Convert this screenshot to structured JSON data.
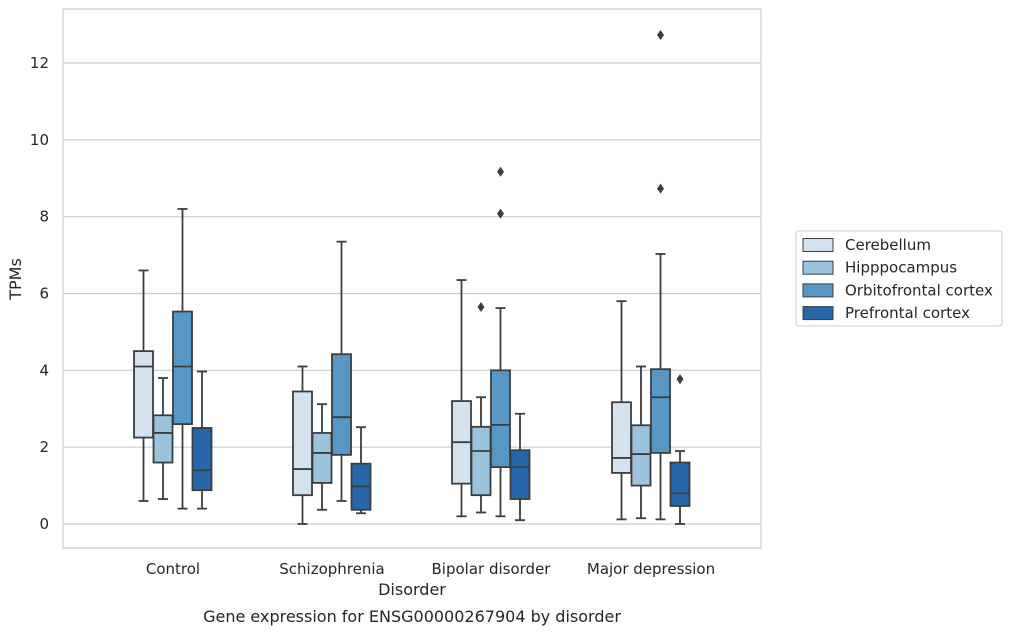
{
  "chart_data": {
    "type": "box",
    "xlabel": "Disorder",
    "ylabel": "TPMs",
    "caption": "Gene expression for ENSG00000267904 by disorder",
    "ylim": [
      -0.6,
      13.4
    ],
    "yticks": [
      0,
      2,
      4,
      6,
      8,
      10,
      12
    ],
    "grid": "horizontal",
    "legend_position": "right",
    "categories": [
      "Control",
      "Schizophrenia",
      "Bipolar disorder",
      "Major depression"
    ],
    "series": [
      {
        "name": "Cerebellum",
        "color": "#d4e2f0",
        "boxes": [
          {
            "whislo": 0.6,
            "q1": 2.25,
            "med": 4.1,
            "q3": 4.5,
            "whishi": 6.6,
            "fliers": []
          },
          {
            "whislo": 0.0,
            "q1": 0.75,
            "med": 1.43,
            "q3": 3.45,
            "whishi": 4.1,
            "fliers": []
          },
          {
            "whislo": 0.2,
            "q1": 1.05,
            "med": 2.13,
            "q3": 3.2,
            "whishi": 6.35,
            "fliers": []
          },
          {
            "whislo": 0.12,
            "q1": 1.33,
            "med": 1.72,
            "q3": 3.17,
            "whishi": 5.8,
            "fliers": []
          }
        ]
      },
      {
        "name": "Hipppocampus",
        "color": "#9cc3de",
        "boxes": [
          {
            "whislo": 0.65,
            "q1": 1.6,
            "med": 2.37,
            "q3": 2.83,
            "whishi": 3.8,
            "fliers": []
          },
          {
            "whislo": 0.37,
            "q1": 1.07,
            "med": 1.85,
            "q3": 2.37,
            "whishi": 3.12,
            "fliers": []
          },
          {
            "whislo": 0.3,
            "q1": 0.75,
            "med": 1.9,
            "q3": 2.53,
            "whishi": 3.3,
            "fliers": [
              5.65
            ]
          },
          {
            "whislo": 0.15,
            "q1": 1.0,
            "med": 1.82,
            "q3": 2.57,
            "whishi": 4.1,
            "fliers": []
          }
        ]
      },
      {
        "name": "Orbitofrontal cortex",
        "color": "#5896c5",
        "boxes": [
          {
            "whislo": 0.4,
            "q1": 2.6,
            "med": 4.1,
            "q3": 5.53,
            "whishi": 8.2,
            "fliers": []
          },
          {
            "whislo": 0.6,
            "q1": 1.8,
            "med": 2.78,
            "q3": 4.42,
            "whishi": 7.35,
            "fliers": []
          },
          {
            "whislo": 0.2,
            "q1": 1.48,
            "med": 2.58,
            "q3": 4.0,
            "whishi": 5.62,
            "fliers": [
              8.08,
              9.17
            ]
          },
          {
            "whislo": 0.12,
            "q1": 1.85,
            "med": 3.3,
            "q3": 4.03,
            "whishi": 7.03,
            "fliers": [
              8.73,
              12.73
            ]
          }
        ]
      },
      {
        "name": "Prefrontal cortex",
        "color": "#2766a9",
        "boxes": [
          {
            "whislo": 0.4,
            "q1": 0.88,
            "med": 1.4,
            "q3": 2.5,
            "whishi": 3.97,
            "fliers": []
          },
          {
            "whislo": 0.28,
            "q1": 0.37,
            "med": 0.98,
            "q3": 1.57,
            "whishi": 2.52,
            "fliers": []
          },
          {
            "whislo": 0.1,
            "q1": 0.65,
            "med": 1.48,
            "q3": 1.92,
            "whishi": 2.87,
            "fliers": []
          },
          {
            "whislo": 0.0,
            "q1": 0.47,
            "med": 0.8,
            "q3": 1.6,
            "whishi": 1.9,
            "fliers": [
              3.77
            ]
          }
        ]
      }
    ]
  }
}
